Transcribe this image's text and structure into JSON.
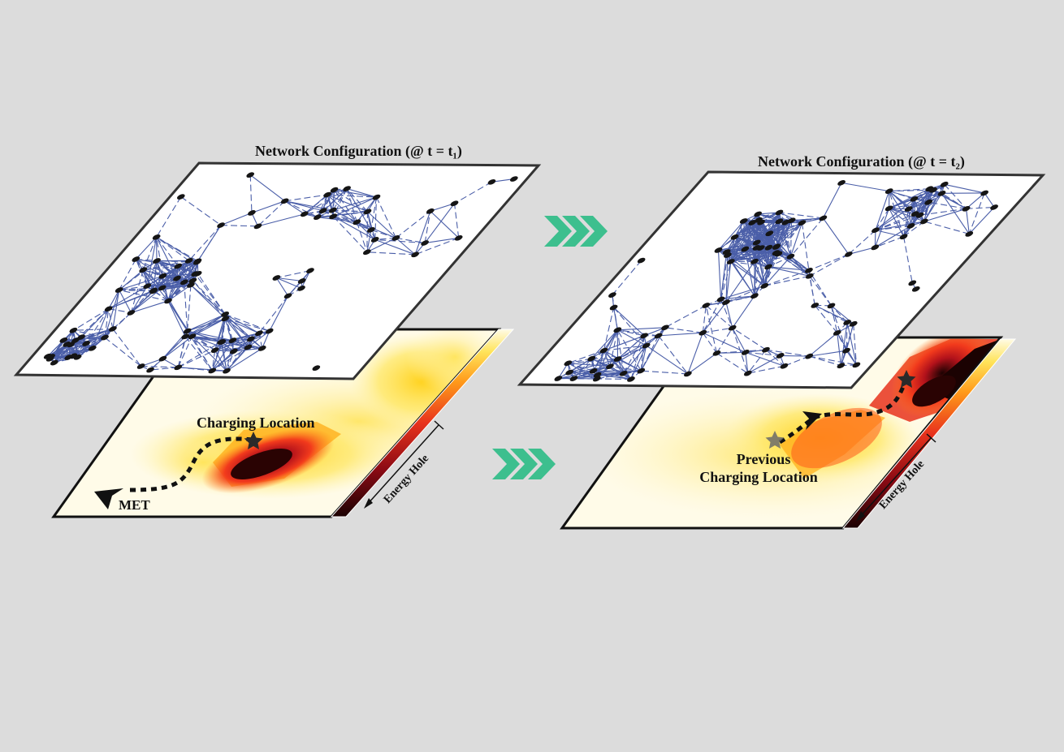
{
  "left_panel": {
    "title": "Network Configuration (@ t = t₁)",
    "charging_label": "Charging Location",
    "met_label": "MET",
    "energy_hole_label": "Energy Hole"
  },
  "right_panel": {
    "title": "Network Configuration (@ t = t₂)",
    "previous_label_line1": "Previous",
    "previous_label_line2": "Charging Location",
    "energy_hole_label": "Energy Hole"
  },
  "colors": {
    "background": "#dcdcdc",
    "network_edge": "#4a5ea8",
    "node": "#151515",
    "arrow_green": "#3dbf8e",
    "heat_low": "#fffbe6",
    "heat_mid": "#ffd21e",
    "heat_high": "#e8321c",
    "heat_max": "#1b0202"
  },
  "icons": [
    "chevron-arrow-icon",
    "star-icon",
    "met-arrow-icon"
  ]
}
